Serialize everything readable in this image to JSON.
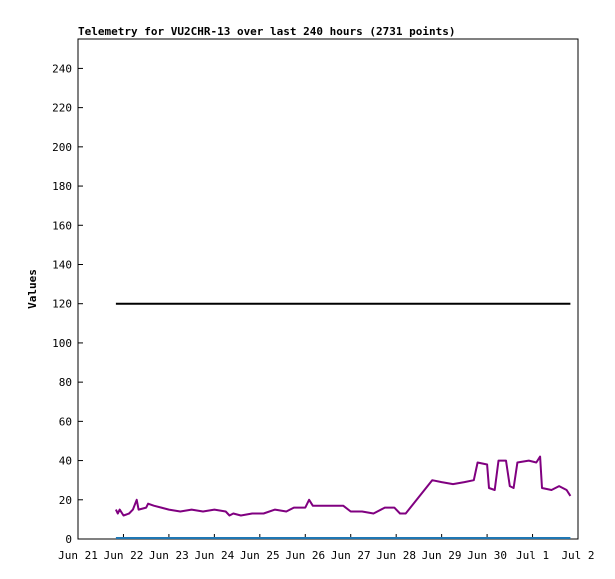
{
  "chart_data": {
    "type": "line",
    "title": "Telemetry for VU2CHR-13 over last 240 hours (2731 points)",
    "ylabel": "Values",
    "xlabel": "",
    "ylim": [
      0,
      255
    ],
    "xlim": [
      "2024-06-21",
      "2024-07-02"
    ],
    "y_ticks": [
      0,
      20,
      40,
      60,
      80,
      100,
      120,
      140,
      160,
      180,
      200,
      220,
      240
    ],
    "x_ticks": [
      {
        "label": "Jun 21",
        "date": "2024-06-21"
      },
      {
        "label": "Jun 22",
        "date": "2024-06-22"
      },
      {
        "label": "Jun 23",
        "date": "2024-06-23"
      },
      {
        "label": "Jun 24",
        "date": "2024-06-24"
      },
      {
        "label": "Jun 25",
        "date": "2024-06-25"
      },
      {
        "label": "Jun 26",
        "date": "2024-06-26"
      },
      {
        "label": "Jun 27",
        "date": "2024-06-27"
      },
      {
        "label": "Jun 28",
        "date": "2024-06-28"
      },
      {
        "label": "Jun 29",
        "date": "2024-06-29"
      },
      {
        "label": "Jun 30",
        "date": "2024-06-30"
      },
      {
        "label": "Jul 1",
        "date": "2024-07-01"
      },
      {
        "label": "Jul 2",
        "date": "2024-07-02"
      }
    ],
    "grid": false,
    "series": [
      {
        "color": "#000000",
        "points": [
          [
            "2024-06-21 20:00",
            120
          ],
          [
            "2024-07-01 20:00",
            120
          ]
        ]
      },
      {
        "color": "#1f77b4",
        "points": [
          [
            "2024-06-21 20:00",
            0.5
          ],
          [
            "2024-07-01 20:00",
            0.5
          ]
        ]
      },
      {
        "color": "#800080",
        "points": [
          [
            "2024-06-21 20:00",
            15
          ],
          [
            "2024-06-21 21:00",
            13
          ],
          [
            "2024-06-21 22:00",
            15
          ],
          [
            "2024-06-22 00:00",
            12
          ],
          [
            "2024-06-22 03:00",
            13
          ],
          [
            "2024-06-22 05:00",
            15
          ],
          [
            "2024-06-22 07:00",
            20
          ],
          [
            "2024-06-22 08:00",
            15
          ],
          [
            "2024-06-22 12:00",
            16
          ],
          [
            "2024-06-22 13:00",
            18
          ],
          [
            "2024-06-22 16:00",
            17
          ],
          [
            "2024-06-22 20:00",
            16
          ],
          [
            "2024-06-23 00:00",
            15
          ],
          [
            "2024-06-23 06:00",
            14
          ],
          [
            "2024-06-23 12:00",
            15
          ],
          [
            "2024-06-23 18:00",
            14
          ],
          [
            "2024-06-24 00:00",
            15
          ],
          [
            "2024-06-24 06:00",
            14
          ],
          [
            "2024-06-24 08:00",
            12
          ],
          [
            "2024-06-24 10:00",
            13
          ],
          [
            "2024-06-24 14:00",
            12
          ],
          [
            "2024-06-24 20:00",
            13
          ],
          [
            "2024-06-25 02:00",
            13
          ],
          [
            "2024-06-25 08:00",
            15
          ],
          [
            "2024-06-25 14:00",
            14
          ],
          [
            "2024-06-25 18:00",
            16
          ],
          [
            "2024-06-26 00:00",
            16
          ],
          [
            "2024-06-26 02:00",
            20
          ],
          [
            "2024-06-26 04:00",
            17
          ],
          [
            "2024-06-26 12:00",
            17
          ],
          [
            "2024-06-26 20:00",
            17
          ],
          [
            "2024-06-27 00:00",
            14
          ],
          [
            "2024-06-27 06:00",
            14
          ],
          [
            "2024-06-27 12:00",
            13
          ],
          [
            "2024-06-27 18:00",
            16
          ],
          [
            "2024-06-27 23:00",
            16
          ],
          [
            "2024-06-28 02:00",
            13
          ],
          [
            "2024-06-28 05:00",
            13
          ],
          [
            "2024-06-28 19:00",
            30
          ],
          [
            "2024-06-29 00:00",
            29
          ],
          [
            "2024-06-29 06:00",
            28
          ],
          [
            "2024-06-29 12:00",
            29
          ],
          [
            "2024-06-29 17:00",
            30
          ],
          [
            "2024-06-29 19:00",
            39
          ],
          [
            "2024-06-30 00:00",
            38
          ],
          [
            "2024-06-30 01:00",
            26
          ],
          [
            "2024-06-30 04:00",
            25
          ],
          [
            "2024-06-30 06:00",
            40
          ],
          [
            "2024-06-30 10:00",
            40
          ],
          [
            "2024-06-30 12:00",
            27
          ],
          [
            "2024-06-30 14:00",
            26
          ],
          [
            "2024-06-30 16:00",
            39
          ],
          [
            "2024-06-30 22:00",
            40
          ],
          [
            "2024-07-01 02:00",
            39
          ],
          [
            "2024-07-01 04:00",
            42
          ],
          [
            "2024-07-01 05:00",
            26
          ],
          [
            "2024-07-01 10:00",
            25
          ],
          [
            "2024-07-01 14:00",
            27
          ],
          [
            "2024-07-01 18:00",
            25
          ],
          [
            "2024-07-01 20:00",
            22
          ]
        ]
      }
    ]
  }
}
